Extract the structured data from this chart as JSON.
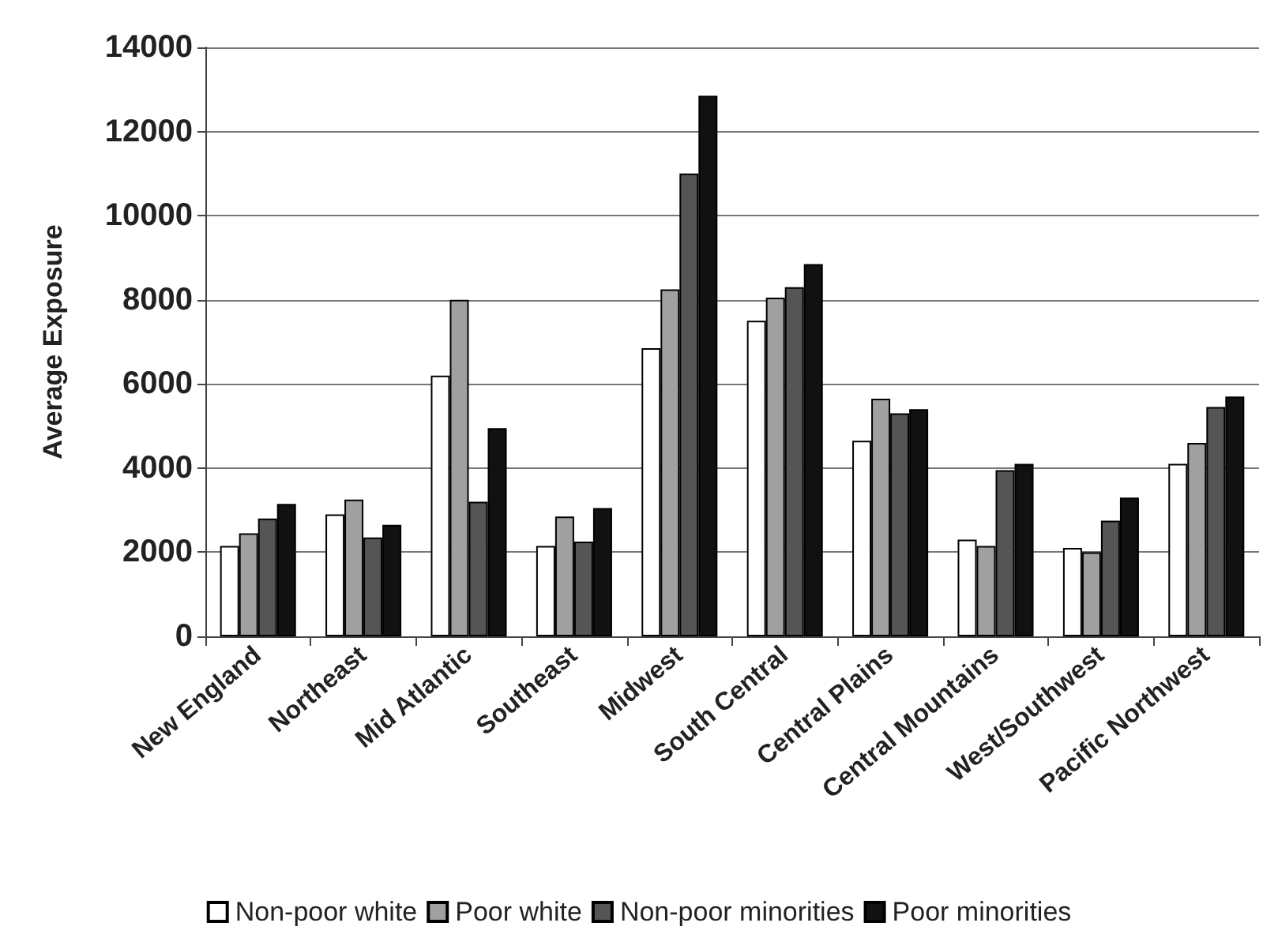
{
  "chart_data": {
    "type": "bar",
    "ylabel": "Average Exposure",
    "categories": [
      "New England",
      "Northeast",
      "Mid Atlantic",
      "Southeast",
      "Midwest",
      "South Central",
      "Central Plains",
      "Central Mountains",
      "West/Southwest",
      "Pacific Northwest"
    ],
    "series": [
      {
        "name": "Non-poor white",
        "color": "#ffffff",
        "values": [
          2150,
          2900,
          6200,
          2150,
          6850,
          7500,
          4650,
          2300,
          2100,
          4100
        ]
      },
      {
        "name": "Poor white",
        "color": "#a0a0a0",
        "values": [
          2450,
          3250,
          8000,
          2850,
          8250,
          8050,
          5650,
          2150,
          2000,
          4600
        ]
      },
      {
        "name": "Non-poor minorities",
        "color": "#555555",
        "values": [
          2800,
          2350,
          3200,
          2250,
          11000,
          8300,
          5300,
          3950,
          2750,
          5450
        ]
      },
      {
        "name": "Poor minorities",
        "color": "#111111",
        "values": [
          3150,
          2650,
          4950,
          3050,
          12850,
          8850,
          5400,
          4100,
          3300,
          5700
        ]
      }
    ],
    "ylim": [
      0,
      14000
    ],
    "yticks": [
      0,
      2000,
      4000,
      6000,
      8000,
      10000,
      12000,
      14000
    ],
    "grid": "y",
    "legend": "bottom"
  }
}
